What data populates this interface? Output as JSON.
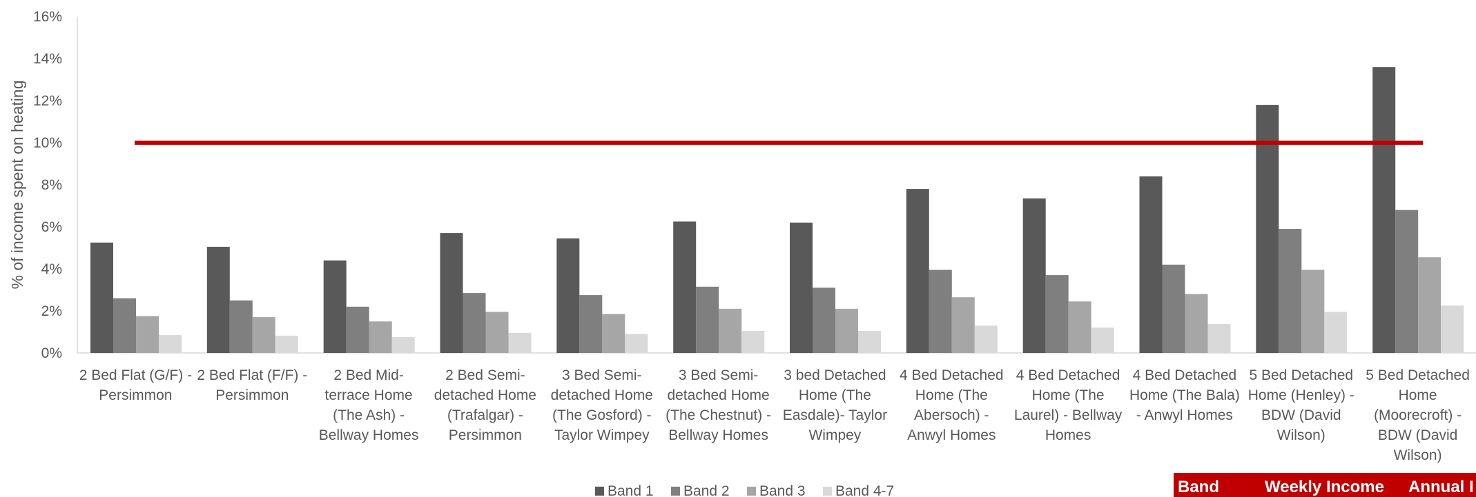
{
  "chart_data": {
    "type": "bar",
    "ylabel": "% of income spent on heating",
    "ylim": [
      0,
      16
    ],
    "y_ticks": [
      "0%",
      "2%",
      "4%",
      "6%",
      "8%",
      "10%",
      "12%",
      "14%",
      "16%"
    ],
    "categories": [
      [
        "2 Bed Flat (G/F) -",
        "Persimmon"
      ],
      [
        "2 Bed Flat (F/F) -",
        "Persimmon"
      ],
      [
        "2 Bed Mid-",
        "terrace Home",
        "(The Ash) -",
        "Bellway Homes"
      ],
      [
        "2 Bed Semi-",
        "detached Home",
        "(Trafalgar) -",
        "Persimmon"
      ],
      [
        "3 Bed Semi-",
        "detached Home",
        "(The Gosford) -",
        "Taylor Wimpey"
      ],
      [
        "3 Bed Semi-",
        "detached Home",
        "(The Chestnut) -",
        "Bellway Homes"
      ],
      [
        "3 bed Detached",
        "Home (The",
        "Easdale)- Taylor",
        "Wimpey"
      ],
      [
        "4 Bed Detached",
        "Home (The",
        "Abersoch) -",
        "Anwyl Homes"
      ],
      [
        "4 Bed Detached",
        "Home (The",
        "Laurel) - Bellway",
        "Homes"
      ],
      [
        "4 Bed Detached",
        "Home (The Bala)",
        "- Anwyl Homes"
      ],
      [
        "5 Bed Detached",
        "Home (Henley) -",
        "BDW (David",
        "Wilson)"
      ],
      [
        "5 Bed Detached",
        "Home",
        "(Moorecroft) -",
        "BDW (David",
        "Wilson)"
      ]
    ],
    "series": [
      {
        "name": "Band 1",
        "color": "#595959",
        "values": [
          5.25,
          5.05,
          4.4,
          5.7,
          5.45,
          6.25,
          6.2,
          7.8,
          7.35,
          8.4,
          11.8,
          13.6
        ]
      },
      {
        "name": "Band 2",
        "color": "#7f7f7f",
        "values": [
          2.6,
          2.5,
          2.2,
          2.85,
          2.75,
          3.15,
          3.1,
          3.95,
          3.7,
          4.2,
          5.9,
          6.8
        ]
      },
      {
        "name": "Band 3",
        "color": "#a6a6a6",
        "values": [
          1.75,
          1.7,
          1.5,
          1.95,
          1.85,
          2.1,
          2.1,
          2.65,
          2.45,
          2.8,
          3.95,
          4.55
        ]
      },
      {
        "name": "Band 4-7",
        "color": "#d9d9d9",
        "values": [
          0.85,
          0.82,
          0.75,
          0.95,
          0.9,
          1.05,
          1.05,
          1.3,
          1.2,
          1.38,
          1.95,
          2.25
        ]
      }
    ],
    "threshold": {
      "value": 10,
      "color": "#c00000"
    },
    "legend_position": "bottom",
    "grid": false
  },
  "table_header": {
    "col1": "Band",
    "col2": "Weekly Income",
    "col3": "Annual I",
    "color": "#c00000"
  }
}
